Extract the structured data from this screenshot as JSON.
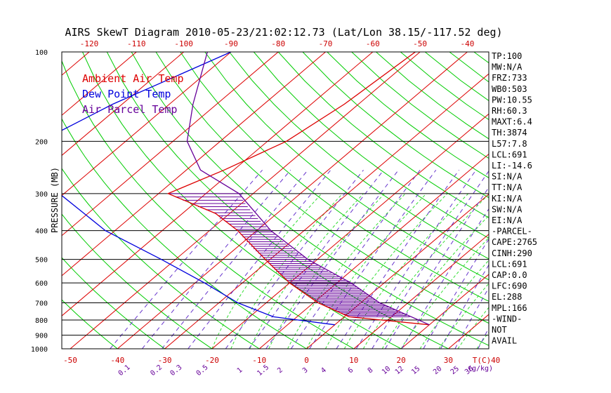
{
  "title": "AIRS SkewT Diagram 2010-05-23/21:02:12.73 (Lat/Lon 38.15/-117.52 deg)",
  "legend": [
    {
      "label": "Ambient Air Temp",
      "color": "#dd0000"
    },
    {
      "label": "Dew Point Temp",
      "color": "#0000dd"
    },
    {
      "label": "Air Parcel Temp",
      "color": "#660099"
    }
  ],
  "chart_data": {
    "type": "line",
    "title": "AIRS SkewT Diagram 2010-05-23/21:02:12.73 (Lat/Lon 38.15/-117.52 deg)",
    "ylabel": "PRESSURE (MB)",
    "xlabel": "T(C)",
    "y_scale": "log",
    "y_ticks": [
      100,
      200,
      300,
      400,
      500,
      600,
      700,
      800,
      900,
      1000
    ],
    "isobars": [
      200,
      300,
      400,
      500,
      600,
      700,
      800,
      900
    ],
    "bottom_temp_ticks": [
      "-50",
      "-40",
      "-30",
      "-20",
      "-10",
      "0",
      "10",
      "20",
      "30",
      "40"
    ],
    "top_temp_ticks": [
      "-120",
      "-110",
      "-100",
      "-90",
      "-80",
      "-70",
      "-60",
      "-50",
      "-40"
    ],
    "mixing_ratio_labels": [
      "0.1",
      "0.2",
      "0.3",
      "0.5",
      "1",
      "1.5",
      "2",
      "3",
      "4",
      "6",
      "8",
      "10",
      "12",
      "15",
      "20",
      "25",
      "30",
      "40"
    ],
    "mixing_ratio_unit": "(g/kg)",
    "series": [
      {
        "name": "Ambient Air Temp",
        "color": "#dd0000",
        "points": [
          [
            100,
            -51
          ],
          [
            150,
            -53
          ],
          [
            200,
            -56
          ],
          [
            250,
            -62
          ],
          [
            300,
            -68
          ],
          [
            350,
            -53
          ],
          [
            400,
            -44
          ],
          [
            500,
            -31
          ],
          [
            600,
            -20
          ],
          [
            700,
            -9
          ],
          [
            780,
            1
          ],
          [
            830,
            20
          ]
        ]
      },
      {
        "name": "Dew Point Temp",
        "color": "#0000dd",
        "points": [
          [
            100,
            -90
          ],
          [
            150,
            -102
          ],
          [
            200,
            -108
          ],
          [
            250,
            -100
          ],
          [
            300,
            -91
          ],
          [
            400,
            -72
          ],
          [
            500,
            -53
          ],
          [
            600,
            -38
          ],
          [
            700,
            -26
          ],
          [
            780,
            -15
          ],
          [
            830,
            0
          ]
        ]
      },
      {
        "name": "Air Parcel Temp",
        "color": "#660099",
        "points": [
          [
            100,
            -95
          ],
          [
            150,
            -85
          ],
          [
            200,
            -77
          ],
          [
            250,
            -67
          ],
          [
            300,
            -53
          ],
          [
            400,
            -37
          ],
          [
            500,
            -22
          ],
          [
            600,
            -7
          ],
          [
            700,
            4
          ],
          [
            830,
            20
          ]
        ]
      }
    ],
    "cape_shading": {
      "color": "#660099",
      "from_hpa": 300,
      "to_hpa": 780
    }
  },
  "indices": [
    "TP:100",
    "MW:N/A",
    "FRZ:733",
    "WB0:503",
    "PW:10.55",
    "RH:60.3",
    "MAXT:6.4",
    "TH:3874",
    "L57:7.8",
    "LCL:691",
    "LI:-14.6",
    "SI:N/A",
    "TT:N/A",
    "KI:N/A",
    "SW:N/A",
    "EI:N/A",
    "-PARCEL-",
    "CAPE:2765",
    "CINH:290",
    "LCL:691",
    "CAP:0.0",
    "LFC:690",
    "EL:288",
    "MPL:166",
    "-WIND-",
    "NOT",
    "AVAIL"
  ]
}
